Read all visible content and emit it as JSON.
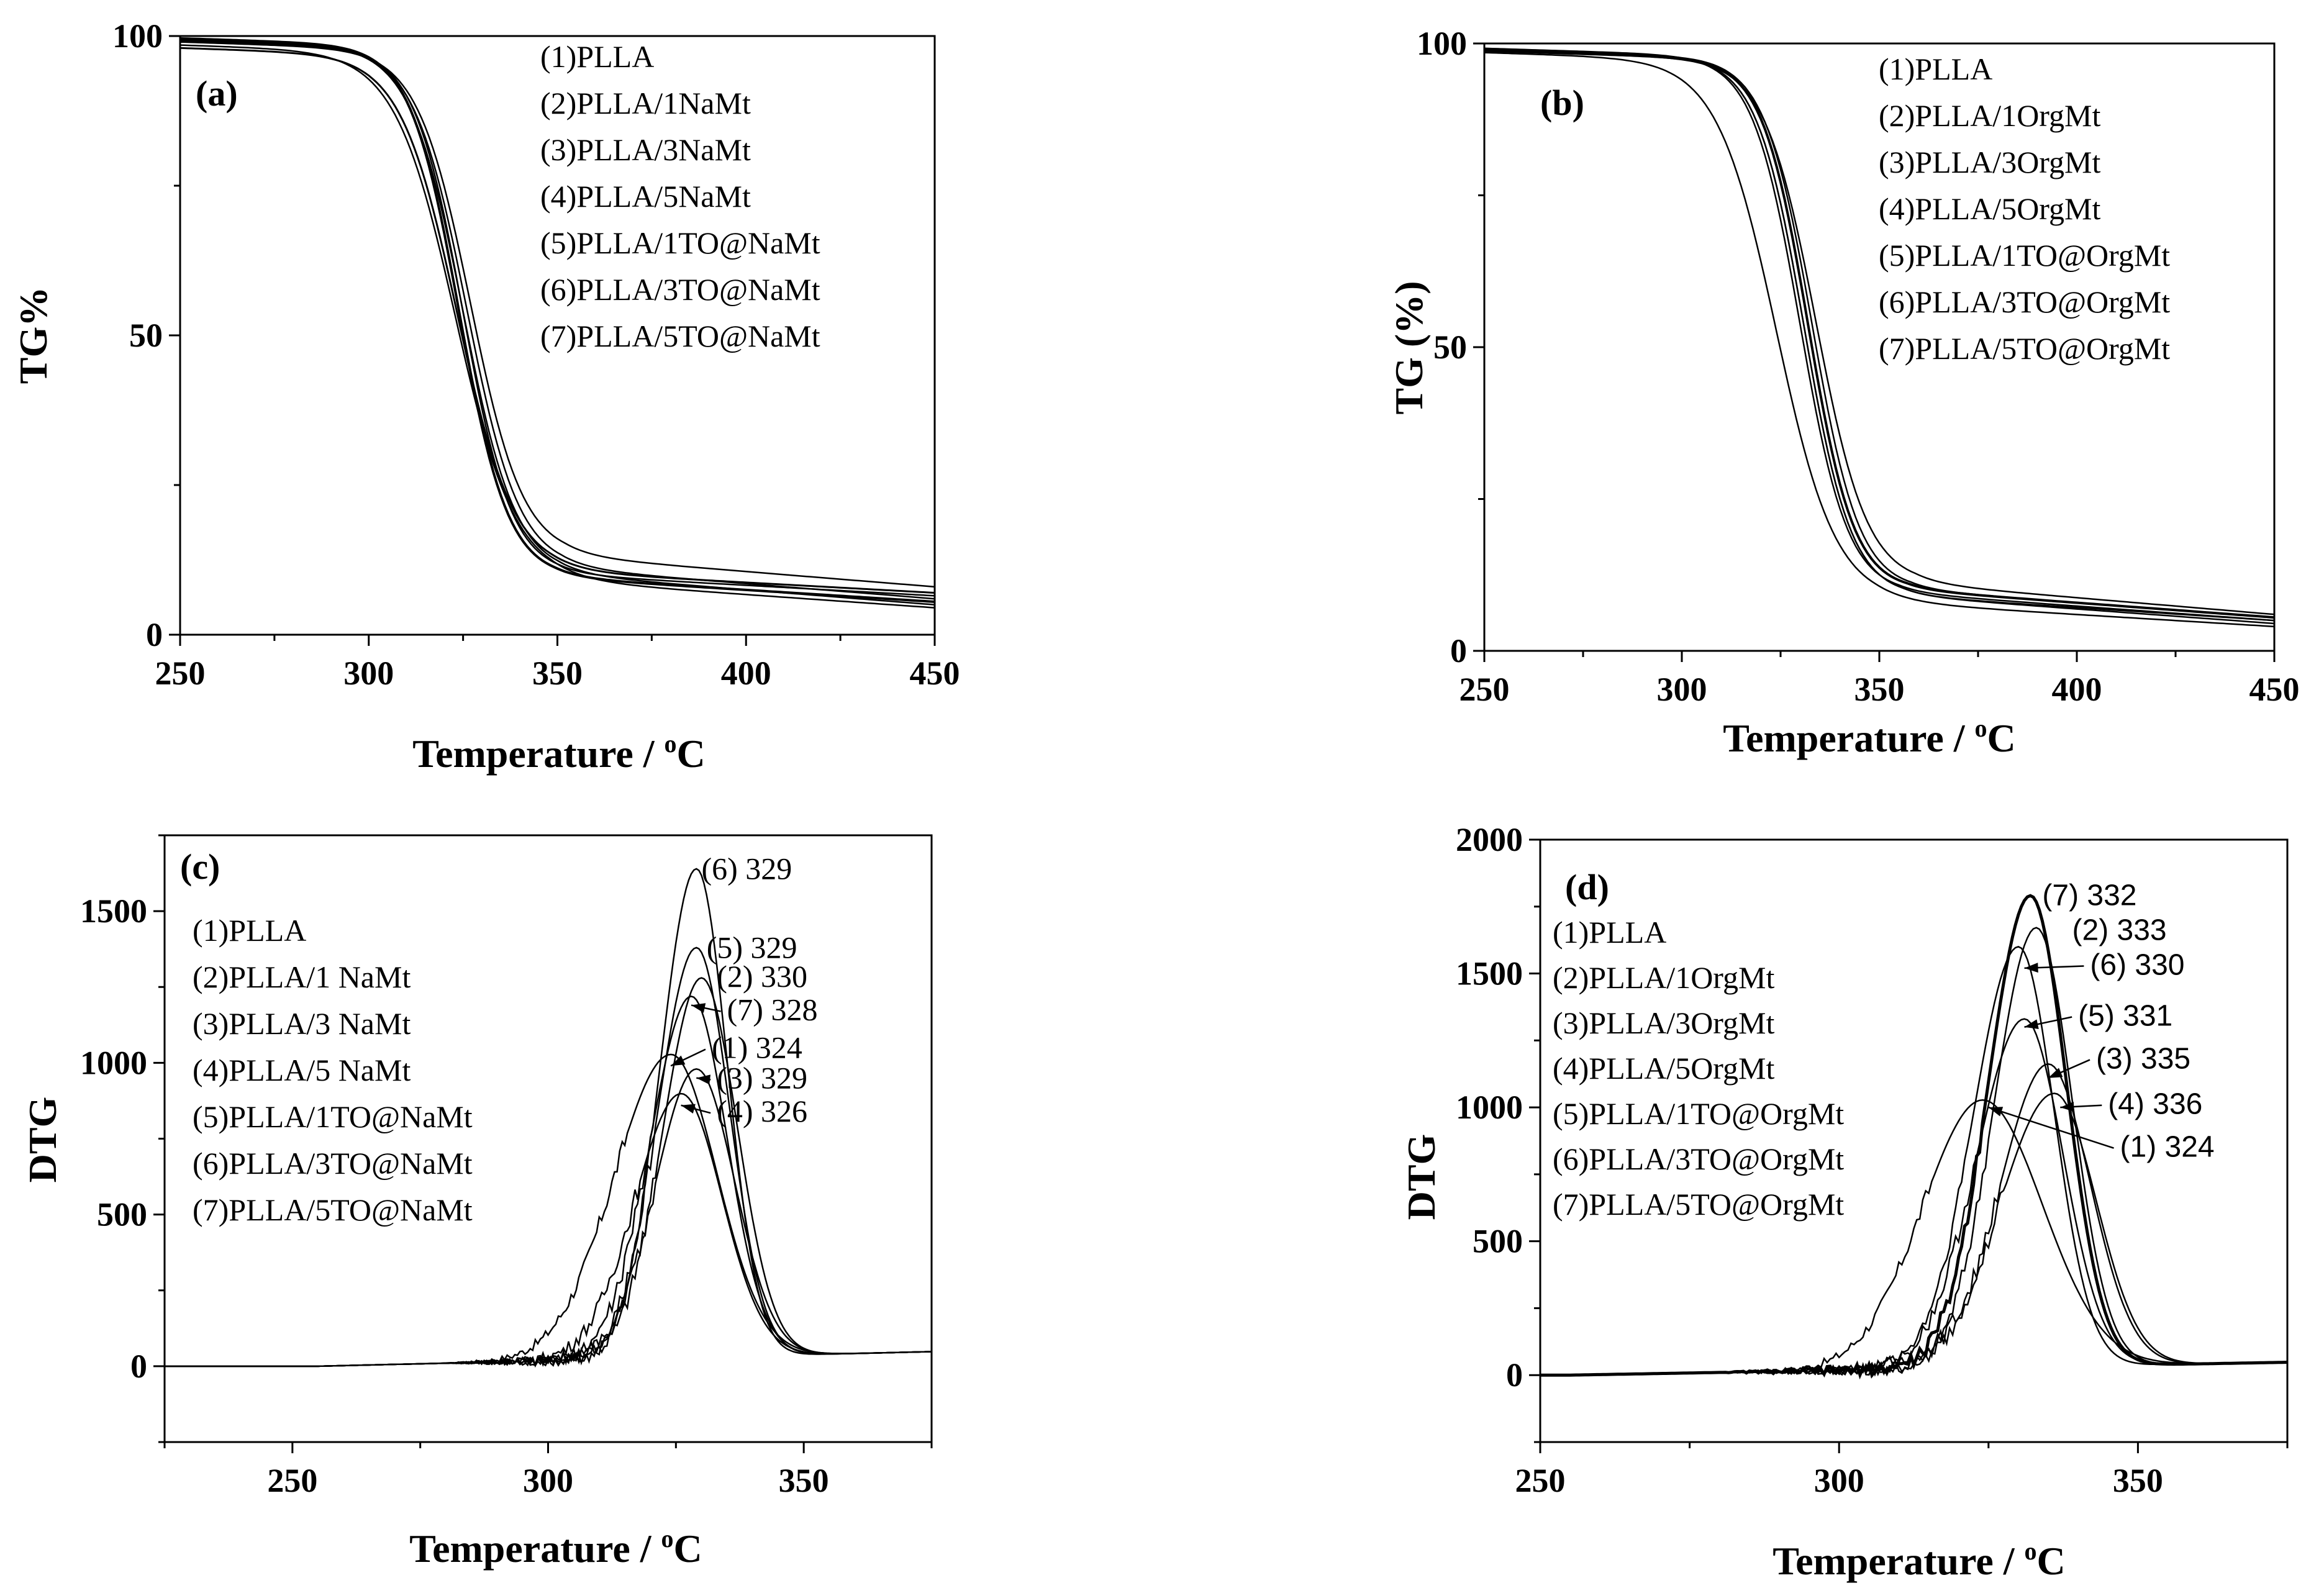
{
  "chart_data": [
    {
      "panel": "(a)",
      "type": "line",
      "xlabel": "Temperature / ",
      "xlabel_sup": "o",
      "xlabel_unit": "C",
      "ylabel": "TG%",
      "xlim": [
        250,
        450
      ],
      "ylim": [
        0,
        100
      ],
      "xticks": [
        250,
        300,
        350,
        400,
        450
      ],
      "yticks": [
        0,
        50,
        100
      ],
      "legend": [
        "(1)PLLA",
        "(2)PLLA/1NaMt",
        "(3)PLLA/3NaMt",
        "(4)PLLA/5NaMt",
        "(5)PLLA/1TO@NaMt",
        "(6)PLLA/3TO@NaMt",
        "(7)PLLA/5TO@NaMt"
      ],
      "series": [
        {
          "name": "(1)PLLA",
          "start": 98.5,
          "mid": 323,
          "width": 8,
          "residue": 9,
          "end": 4.5,
          "stroke": 2.5
        },
        {
          "name": "(2)PLLA/1NaMt",
          "start": 99.5,
          "mid": 325,
          "width": 7,
          "residue": 10,
          "end": 5,
          "stroke": 2.5
        },
        {
          "name": "(3)PLLA/3NaMt",
          "start": 99.3,
          "mid": 326,
          "width": 7,
          "residue": 11,
          "end": 6,
          "stroke": 2.5
        },
        {
          "name": "(4)PLLA/5NaMt",
          "start": 99.0,
          "mid": 327,
          "width": 7,
          "residue": 13,
          "end": 8,
          "stroke": 2.5
        },
        {
          "name": "(5)PLLA/1TO@NaMt",
          "start": 99.6,
          "mid": 324,
          "width": 6.5,
          "residue": 9.5,
          "end": 5.5,
          "stroke": 4
        },
        {
          "name": "(6)PLLA/3TO@NaMt",
          "start": 99.2,
          "mid": 325,
          "width": 6.5,
          "residue": 10,
          "end": 6.5,
          "stroke": 2.5
        },
        {
          "name": "(7)PLLA/5TO@NaMt",
          "start": 98.0,
          "mid": 323.5,
          "width": 7.5,
          "residue": 10.5,
          "end": 7,
          "stroke": 3
        }
      ]
    },
    {
      "panel": "(b)",
      "type": "line",
      "xlabel": "Temperature / ",
      "xlabel_sup": "o",
      "xlabel_unit": "C",
      "ylabel": "TG (%)",
      "xlim": [
        250,
        450
      ],
      "ylim": [
        0,
        100
      ],
      "xticks": [
        250,
        300,
        350,
        400,
        450
      ],
      "yticks": [
        0,
        50,
        100
      ],
      "legend": [
        "(1)PLLA",
        "(2)PLLA/1OrgMt",
        "(3)PLLA/3OrgMt",
        "(4)PLLA/5OrgMt",
        "(5)PLLA/1TO@OrgMt",
        "(6)PLLA/3TO@OrgMt",
        "(7)PLLA/5TO@OrgMt"
      ],
      "series": [
        {
          "name": "(1)PLLA",
          "start": 98.5,
          "mid": 324,
          "width": 7.5,
          "residue": 8,
          "end": 4,
          "stroke": 2.5
        },
        {
          "name": "(2)PLLA/1OrgMt",
          "start": 99.0,
          "mid": 331,
          "width": 6,
          "residue": 9,
          "end": 5,
          "stroke": 2.5
        },
        {
          "name": "(3)PLLA/3OrgMt",
          "start": 99.0,
          "mid": 333,
          "width": 6,
          "residue": 10,
          "end": 5.5,
          "stroke": 2.5
        },
        {
          "name": "(4)PLLA/5OrgMt",
          "start": 98.8,
          "mid": 334,
          "width": 6.5,
          "residue": 11,
          "end": 6,
          "stroke": 2.5
        },
        {
          "name": "(5)PLLA/1TO@OrgMt",
          "start": 99.2,
          "mid": 330,
          "width": 6,
          "residue": 9.5,
          "end": 5,
          "stroke": 2.5
        },
        {
          "name": "(6)PLLA/3TO@OrgMt",
          "start": 99.0,
          "mid": 331,
          "width": 6,
          "residue": 9,
          "end": 4.5,
          "stroke": 2.5
        },
        {
          "name": "(7)PLLA/5TO@OrgMt",
          "start": 98.8,
          "mid": 332,
          "width": 5.8,
          "residue": 10,
          "end": 5.5,
          "stroke": 4
        }
      ]
    },
    {
      "panel": "(c)",
      "type": "line",
      "xlabel": "Temperature / ",
      "xlabel_sup": "o",
      "xlabel_unit": "C",
      "ylabel": "DTG",
      "xlim": [
        225,
        375
      ],
      "ylim": [
        -250,
        1750
      ],
      "xticks": [
        250,
        300,
        350
      ],
      "yticks": [
        0,
        500,
        1000,
        1500
      ],
      "legend": [
        "(1)PLLA",
        "(2)PLLA/1 NaMt",
        "(3)PLLA/3 NaMt",
        "(4)PLLA/5 NaMt",
        "(5)PLLA/1TO@NaMt",
        "(6)PLLA/3TO@NaMt",
        "(7)PLLA/5TO@NaMt"
      ],
      "series": [
        {
          "name": "(1)PLLA",
          "peak_x": 324,
          "peak_y": 1000,
          "sl": 11,
          "sr": 9,
          "stroke": 2.5
        },
        {
          "name": "(2)PLLA/1 NaMt",
          "peak_x": 330,
          "peak_y": 1250,
          "sl": 7.5,
          "sr": 7,
          "stroke": 2.5
        },
        {
          "name": "(3)PLLA/3 NaMt",
          "peak_x": 329,
          "peak_y": 950,
          "sl": 8,
          "sr": 7.5,
          "stroke": 2.5
        },
        {
          "name": "(4)PLLA/5 NaMt",
          "peak_x": 326,
          "peak_y": 870,
          "sl": 9,
          "sr": 8,
          "stroke": 2.5
        },
        {
          "name": "(5)PLLA/1TO@NaMt",
          "peak_x": 329,
          "peak_y": 1350,
          "sl": 7.5,
          "sr": 6.5,
          "stroke": 2.5
        },
        {
          "name": "(6)PLLA/3TO@NaMt",
          "peak_x": 329,
          "peak_y": 1610,
          "sl": 7,
          "sr": 6,
          "stroke": 2.5
        },
        {
          "name": "(7)PLLA/5TO@NaMt",
          "peak_x": 328,
          "peak_y": 1190,
          "sl": 8,
          "sr": 7,
          "stroke": 2.5
        }
      ],
      "annotations": [
        {
          "text": "(6) 329",
          "x": 330,
          "y": 1610
        },
        {
          "text": "(5) 329",
          "x": 331,
          "y": 1350
        },
        {
          "text": "(2) 330",
          "x": 333,
          "y": 1255
        },
        {
          "text": "(7) 328",
          "x": 335,
          "y": 1145,
          "ax": 328,
          "ay": 1190
        },
        {
          "text": "(1) 324",
          "x": 332,
          "y": 1020,
          "ax": 324,
          "ay": 990
        },
        {
          "text": "(3) 329",
          "x": 333,
          "y": 920,
          "ax": 329,
          "ay": 950
        },
        {
          "text": "(4) 326",
          "x": 333,
          "y": 810,
          "ax": 326,
          "ay": 860
        }
      ]
    },
    {
      "panel": "(d)",
      "type": "line",
      "xlabel": "Temperature / ",
      "xlabel_sup": "o",
      "xlabel_unit": "C",
      "ylabel": "DTG",
      "xlim": [
        250,
        375
      ],
      "ylim": [
        -250,
        2000
      ],
      "xticks": [
        250,
        300,
        350
      ],
      "yticks": [
        0,
        500,
        1000,
        1500,
        2000
      ],
      "legend": [
        "(1)PLLA",
        "(2)PLLA/1OrgMt",
        "(3)PLLA/3OrgMt",
        "(4)PLLA/5OrgMt",
        "(5)PLLA/1TO@OrgMt",
        "(6)PLLA/3TO@OrgMt",
        "(7)PLLA/5TO@OrgMt"
      ],
      "series": [
        {
          "name": "(1)PLLA",
          "peak_x": 324,
          "peak_y": 1000,
          "sl": 10,
          "sr": 10,
          "stroke": 2.5
        },
        {
          "name": "(2)PLLA/1OrgMt",
          "peak_x": 333,
          "peak_y": 1640,
          "sl": 7,
          "sr": 6,
          "stroke": 2.5
        },
        {
          "name": "(3)PLLA/3OrgMt",
          "peak_x": 335,
          "peak_y": 1130,
          "sl": 8,
          "sr": 7,
          "stroke": 2.5
        },
        {
          "name": "(4)PLLA/5OrgMt",
          "peak_x": 336,
          "peak_y": 1020,
          "sl": 9,
          "sr": 7,
          "stroke": 2.5
        },
        {
          "name": "(5)PLLA/1TO@OrgMt",
          "peak_x": 331,
          "peak_y": 1300,
          "sl": 8,
          "sr": 6.5,
          "stroke": 2.5
        },
        {
          "name": "(6)PLLA/3TO@OrgMt",
          "peak_x": 330,
          "peak_y": 1570,
          "sl": 7.5,
          "sr": 6,
          "stroke": 2.5
        },
        {
          "name": "(7)PLLA/5TO@OrgMt",
          "peak_x": 332,
          "peak_y": 1760,
          "sl": 7,
          "sr": 6,
          "stroke": 5
        }
      ],
      "annotations": [
        {
          "text": "(7) 332",
          "x": 334,
          "y": 1760
        },
        {
          "text": "(2) 333",
          "x": 339,
          "y": 1630
        },
        {
          "text": "(6) 330",
          "x": 342,
          "y": 1500,
          "ax": 331,
          "ay": 1520
        },
        {
          "text": "(5) 331",
          "x": 340,
          "y": 1310,
          "ax": 331,
          "ay": 1300
        },
        {
          "text": "(3) 335",
          "x": 343,
          "y": 1150,
          "ax": 335,
          "ay": 1110
        },
        {
          "text": "(4) 336",
          "x": 345,
          "y": 980,
          "ax": 337,
          "ay": 1000
        },
        {
          "text": "(1) 324",
          "x": 347,
          "y": 820,
          "ax": 325,
          "ay": 1000
        }
      ]
    }
  ]
}
